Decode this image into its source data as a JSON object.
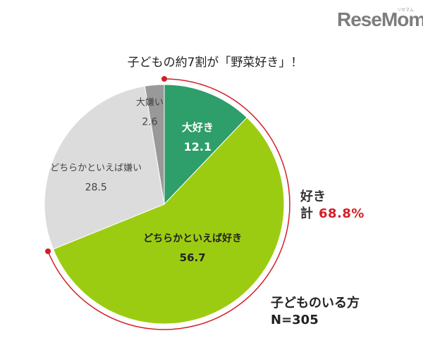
{
  "logo": {
    "text": "ReseMom",
    "sub": "リセマム"
  },
  "title": "子どもの約7割が「野菜好き」！",
  "chart_data": {
    "type": "pie",
    "unit": "%",
    "slices": [
      {
        "label": "大好き",
        "value": 12.1,
        "color": "#2e9e6a",
        "text_color": "#ffffff",
        "bold": true
      },
      {
        "label": "どちらかといえば好き",
        "value": 56.7,
        "color": "#9ccc12",
        "text_color": "#222222",
        "bold": true
      },
      {
        "label": "どちらかといえば嫌い",
        "value": 28.5,
        "color": "#dcdcdc",
        "text_color": "#444444",
        "bold": false
      },
      {
        "label": "大嫌い",
        "value": 2.6,
        "color": "#999999",
        "text_color": "#444444",
        "bold": false
      }
    ],
    "bracket_color": "#d21f26"
  },
  "total": {
    "label_line1": "好き",
    "label_line2": "計",
    "value": "68.8%"
  },
  "sample": {
    "line1": "子どものいる方",
    "line2": "N=305"
  }
}
